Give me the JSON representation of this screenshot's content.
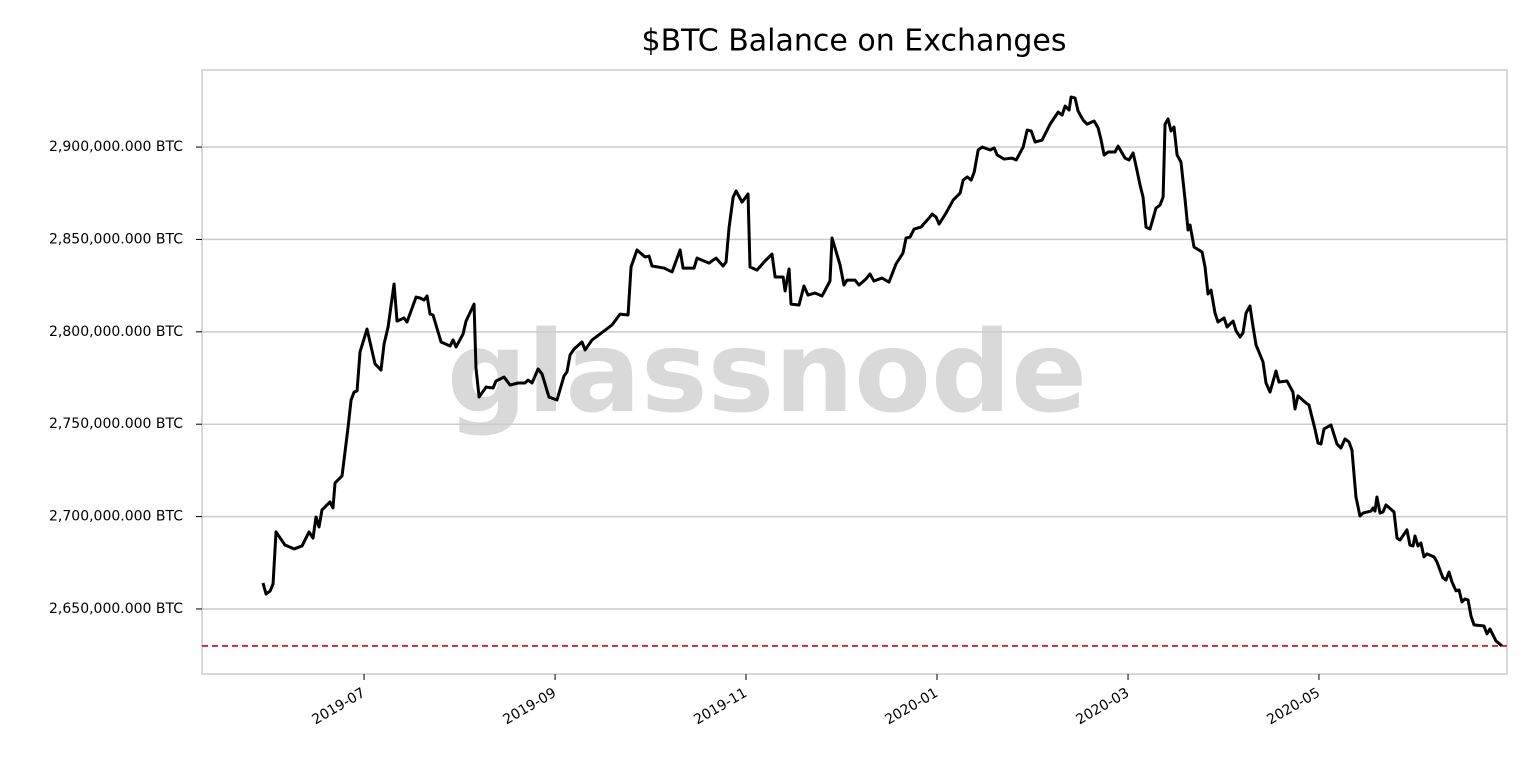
{
  "chart_data": {
    "type": "line",
    "title": "$BTC Balance on Exchanges",
    "watermark": "glassnode",
    "color": "#000000",
    "grid": true,
    "reference_line": {
      "value": 2630000,
      "color": "#d62728"
    },
    "xlim": [
      2019.3586,
      2020.4974
    ],
    "xticks": [
      {
        "value": 2019.5,
        "label": "2019-07"
      },
      {
        "value": 2019.6667,
        "label": "2019-09"
      },
      {
        "value": 2019.8333,
        "label": "2019-11"
      },
      {
        "value": 2020.0,
        "label": "2020-01"
      },
      {
        "value": 2020.1667,
        "label": "2020-03"
      },
      {
        "value": 2020.3333,
        "label": "2020-05"
      }
    ],
    "ylim": [
      2614800,
      2941700
    ],
    "yticks": [
      {
        "value": 2650000,
        "label": "2,650,000.000 BTC"
      },
      {
        "value": 2700000,
        "label": "2,700,000.000 BTC"
      },
      {
        "value": 2750000,
        "label": "2,750,000.000 BTC"
      },
      {
        "value": 2800000,
        "label": "2,800,000.000 BTC"
      },
      {
        "value": 2850000,
        "label": "2,850,000.000 BTC"
      },
      {
        "value": 2900000,
        "label": "2,900,000.000 BTC"
      }
    ],
    "x": [
      2019.4118,
      2019.4145,
      2019.418,
      2019.4206,
      2019.4232,
      2019.431,
      2019.4389,
      2019.4459,
      2019.452,
      2019.4555,
      2019.4581,
      2019.4607,
      2019.4633,
      2019.4703,
      2019.4729,
      2019.4747,
      2019.4808,
      2019.486,
      2019.4887,
      2019.4913,
      2019.4939,
      2019.4965,
      2019.5026,
      2019.5096,
      2019.5148,
      2019.5175,
      2019.521,
      2019.5262,
      2019.5288,
      2019.5349,
      2019.5375,
      2019.5454,
      2019.5489,
      2019.5524,
      2019.555,
      2019.5576,
      2019.5602,
      2019.5672,
      2019.5751,
      2019.5777,
      2019.5803,
      2019.5864,
      2019.589,
      2019.596,
      2019.5977,
      2019.6004,
      2019.6065,
      2019.6126,
      2019.6152,
      2019.6222,
      2019.6274,
      2019.6344,
      2019.6405,
      2019.6431,
      2019.6466,
      2019.6519,
      2019.6553,
      2019.6614,
      2019.6684,
      2019.6745,
      2019.6771,
      2019.6798,
      2019.6833,
      2019.6902,
      2019.6929,
      2019.699,
      2019.7094,
      2019.7164,
      2019.7234,
      2019.7304,
      2019.733,
      2019.7382,
      2019.7452,
      2019.7487,
      2019.7513,
      2019.7618,
      2019.7688,
      2019.7758,
      2019.7784,
      2019.788,
      2019.7906,
      2019.8011,
      2019.8072,
      2019.8133,
      2019.8159,
      2019.8185,
      2019.8221,
      2019.8247,
      2019.8299,
      2019.8351,
      2019.8368,
      2019.8429,
      2019.8499,
      2019.856,
      2019.8587,
      2019.8657,
      2019.8674,
      2019.8709,
      2019.8726,
      2019.8796,
      2019.8839,
      2019.8874,
      2019.8935,
      2019.8997,
      2019.9066,
      2019.9084,
      2019.9154,
      2019.9188,
      2019.9215,
      2019.9284,
      2019.9319,
      2019.938,
      2019.9415,
      2019.945,
      2019.952,
      2019.9581,
      2019.9642,
      2019.9703,
      2019.973,
      2019.9765,
      2019.98,
      2019.9861,
      2019.9931,
      2019.9957,
      2019.9992,
      2020.0018,
      2020.0079,
      2020.0141,
      2020.0202,
      2020.0228,
      2020.0264,
      2020.0298,
      2020.0325,
      2020.0359,
      2020.0394,
      2020.0464,
      2020.0499,
      2020.0525,
      2020.0586,
      2020.0656,
      2020.0691,
      2020.0752,
      2020.0787,
      2020.0822,
      2020.0856,
      2020.0917,
      2020.0987,
      2020.1057,
      2020.1092,
      2020.1118,
      2020.1153,
      2020.117,
      2020.1205,
      2020.1231,
      2020.1275,
      2020.131,
      2020.1371,
      2020.1406,
      2020.1432,
      2020.1458,
      2020.1493,
      2020.1554,
      2020.158,
      2020.1641,
      2020.1676,
      2020.1711,
      2020.1737,
      2020.1772,
      2020.1798,
      2020.1824,
      2020.1859,
      2020.1911,
      2020.1946,
      2020.1973,
      2020.199,
      2020.2016,
      2020.2042,
      2020.2068,
      2020.2095,
      2020.2129,
      2020.2164,
      2020.2191,
      2020.2208,
      2020.2243,
      2020.2313,
      2020.2339,
      2020.2365,
      2020.2391,
      2020.2426,
      2020.2452,
      2020.2505,
      2020.2531,
      2020.2584,
      2020.261,
      2020.2645,
      2020.267,
      2020.2697,
      2020.2731,
      2020.2757,
      2020.2784,
      2020.2845,
      2020.2871,
      2020.2906,
      2020.2958,
      2020.2984,
      2020.3054,
      2020.3106,
      2020.3124,
      2020.315,
      2020.322,
      2020.3246,
      2020.3298,
      2020.3325,
      2020.3351,
      2020.3377,
      2020.3438,
      2020.349,
      2020.3525,
      2020.356,
      2020.3595,
      2020.3621,
      2020.3656,
      2020.3691,
      2020.3717,
      2020.3787,
      2020.3805,
      2020.3822,
      2020.3839,
      2020.3866,
      2020.3892,
      2020.3918,
      2020.3988,
      2020.4014,
      2020.404,
      2020.4101,
      2020.4127,
      2020.4154,
      2020.4171,
      2020.4197,
      2020.4223,
      2020.4249,
      2020.4276,
      2020.4337,
      2020.4363,
      2020.4415,
      2020.4442,
      2020.4468,
      2020.4494,
      2020.4529,
      2020.4555,
      2020.4581,
      2020.4607,
      2020.4634,
      2020.466,
      2020.4686,
      2020.4773,
      2020.4799,
      2020.4825,
      2020.4878,
      2020.493
    ],
    "values": [
      2664100,
      2658100,
      2659700,
      2663500,
      2691700,
      2684600,
      2682500,
      2684100,
      2691700,
      2688400,
      2699800,
      2694400,
      2703600,
      2707900,
      2704700,
      2718200,
      2722000,
      2748000,
      2763100,
      2767400,
      2768000,
      2789100,
      2801500,
      2782600,
      2779300,
      2793400,
      2802600,
      2825900,
      2805800,
      2807500,
      2805300,
      2818800,
      2818300,
      2817200,
      2819400,
      2809600,
      2809100,
      2794500,
      2792300,
      2795600,
      2791800,
      2798800,
      2805800,
      2815000,
      2780400,
      2764700,
      2770100,
      2769600,
      2773400,
      2775500,
      2771200,
      2772300,
      2772300,
      2773900,
      2772300,
      2779900,
      2777200,
      2764700,
      2763100,
      2776100,
      2778300,
      2787500,
      2790700,
      2794500,
      2790200,
      2795600,
      2800400,
      2803700,
      2809600,
      2809100,
      2835100,
      2844300,
      2840500,
      2841000,
      2835600,
      2834500,
      2832400,
      2844300,
      2834500,
      2834500,
      2839900,
      2837200,
      2839900,
      2835600,
      2837800,
      2856200,
      2872900,
      2876200,
      2870200,
      2874600,
      2835100,
      2833400,
      2838300,
      2842100,
      2829700,
      2829700,
      2822100,
      2834000,
      2815000,
      2814500,
      2824800,
      2819900,
      2821000,
      2819400,
      2827500,
      2850800,
      2836200,
      2825300,
      2828000,
      2828000,
      2825300,
      2828600,
      2831300,
      2827500,
      2829100,
      2826900,
      2836700,
      2842600,
      2850800,
      2851300,
      2855600,
      2856700,
      2861600,
      2863700,
      2862100,
      2858300,
      2864300,
      2871300,
      2875100,
      2882100,
      2883800,
      2882100,
      2886500,
      2898400,
      2900000,
      2898400,
      2899500,
      2895700,
      2893500,
      2894000,
      2893000,
      2900000,
      2909200,
      2908700,
      2902700,
      2903800,
      2912400,
      2918900,
      2917300,
      2922200,
      2920000,
      2927100,
      2926500,
      2919500,
      2914600,
      2912400,
      2914100,
      2910300,
      2903800,
      2895700,
      2897300,
      2897300,
      2900500,
      2894000,
      2893000,
      2896800,
      2889700,
      2879400,
      2872900,
      2856700,
      2855600,
      2867000,
      2868600,
      2872900,
      2912400,
      2915200,
      2908700,
      2910800,
      2895700,
      2891900,
      2871900,
      2855100,
      2857800,
      2845900,
      2843200,
      2835100,
      2820500,
      2822600,
      2810200,
      2805300,
      2807500,
      2802600,
      2805800,
      2800400,
      2797200,
      2799400,
      2810200,
      2814000,
      2803100,
      2792900,
      2783700,
      2772300,
      2767400,
      2778800,
      2772800,
      2773400,
      2767400,
      2758200,
      2765300,
      2761500,
      2760400,
      2747400,
      2739800,
      2739300,
      2747400,
      2749600,
      2739300,
      2737100,
      2742000,
      2740400,
      2736000,
      2710600,
      2700300,
      2701900,
      2703000,
      2704700,
      2703000,
      2710600,
      2701900,
      2702500,
      2706300,
      2702500,
      2688400,
      2687300,
      2692800,
      2684600,
      2684100,
      2689500,
      2684100,
      2685700,
      2678200,
      2679800,
      2678200,
      2675400,
      2666800,
      2665700,
      2670000,
      2664600,
      2659800,
      2660300,
      2653800,
      2655400,
      2654900,
      2646200,
      2641400,
      2640800,
      2636500,
      2639200,
      2632700,
      2630000
    ]
  }
}
